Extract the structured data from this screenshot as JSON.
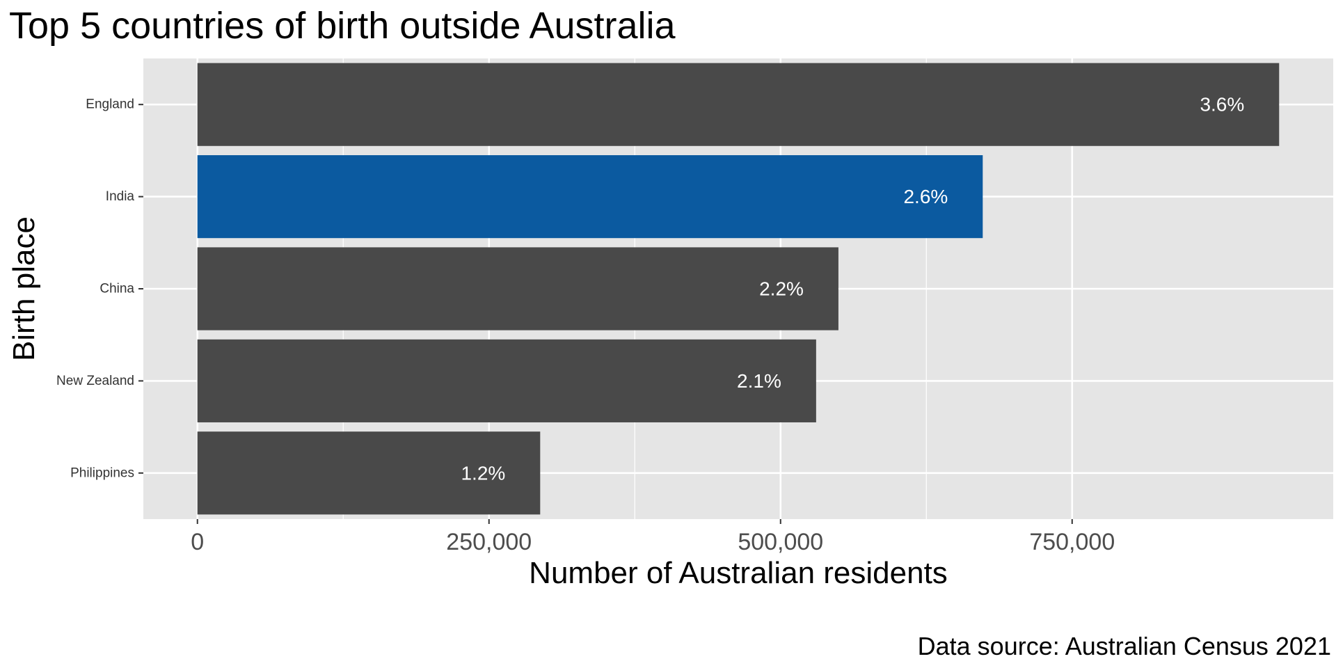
{
  "chart_data": {
    "type": "bar",
    "orientation": "horizontal",
    "title": "Top 5 countries of birth outside Australia",
    "xlabel": "Number of Australian residents",
    "ylabel": "Birth place",
    "caption": "Data source: Australian Census 2021",
    "categories": [
      "England",
      "India",
      "China",
      "New Zealand",
      "Philippines"
    ],
    "values": [
      927490,
      673352,
      549618,
      530491,
      293892
    ],
    "value_labels": [
      "3.6%",
      "2.6%",
      "2.2%",
      "2.1%",
      "1.2%"
    ],
    "highlight": "India",
    "xlim": [
      -46375,
      973865
    ],
    "x_ticks": [
      0,
      250000,
      500000,
      750000
    ],
    "x_tick_labels": [
      "0",
      "250,000",
      "500,000",
      "750,000"
    ],
    "grid": true,
    "legend": "none",
    "colors": {
      "bar": "#494949",
      "highlight": "#0b5aa0",
      "panel": "#e5e5e5",
      "grid": "#ffffff",
      "bar_label": "#ffffff"
    }
  }
}
